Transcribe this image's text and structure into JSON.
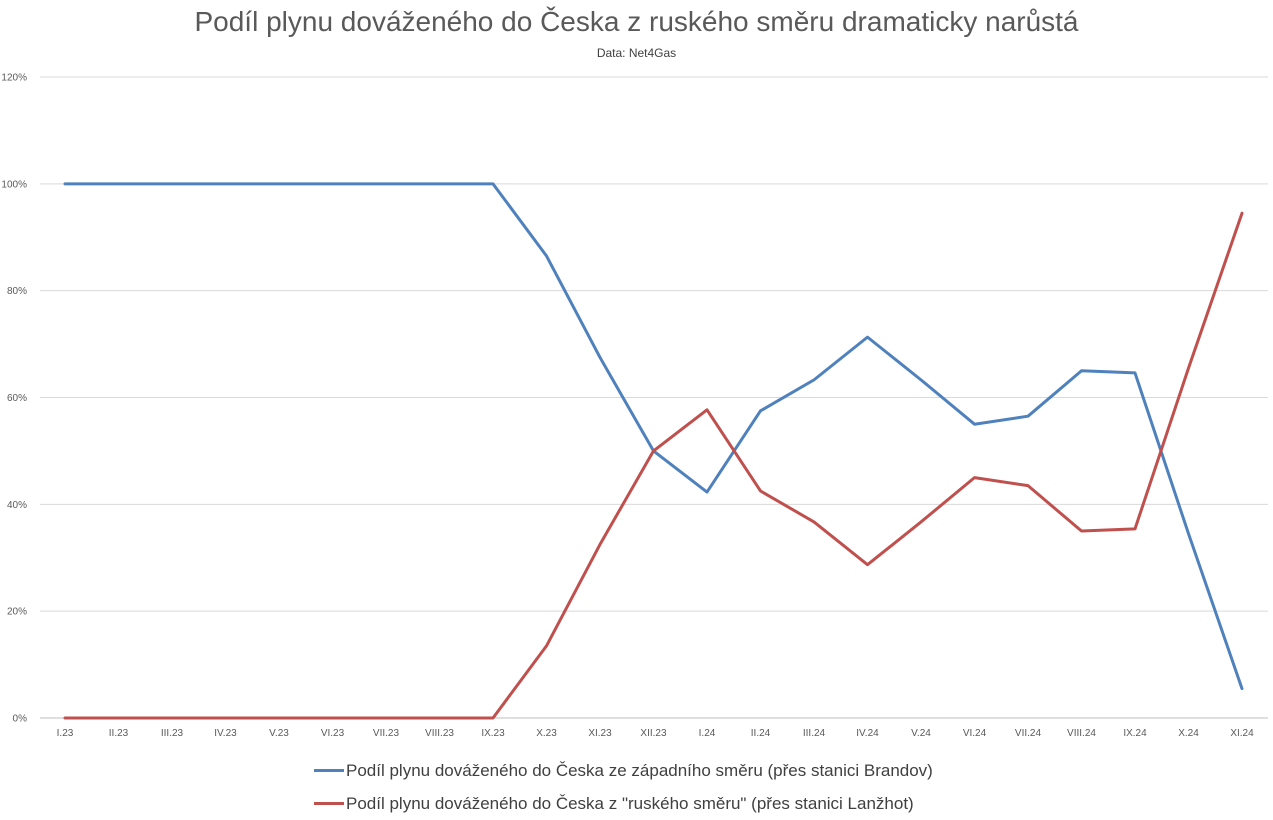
{
  "chart_data": {
    "type": "line",
    "title": "Podíl plynu dováženého do Česka z ruského směru dramaticky narůstá",
    "subtitle": "Data: Net4Gas",
    "categories": [
      "I.23",
      "II.23",
      "III.23",
      "IV.23",
      "V.23",
      "VI.23",
      "VII.23",
      "VIII.23",
      "IX.23",
      "X.23",
      "XI.23",
      "XII.23",
      "I.24",
      "II.24",
      "III.24",
      "IV.24",
      "V.24",
      "VI.24",
      "VII.24",
      "VIII.24",
      "IX.24",
      "X.24",
      "XI.24"
    ],
    "y_ticks": [
      "0%",
      "20%",
      "40%",
      "60%",
      "80%",
      "100%",
      "120%"
    ],
    "ylim": [
      0,
      120
    ],
    "grid": true,
    "legend_position": "bottom",
    "series": [
      {
        "name": "Podíl plynu dováženého do Česka ze západního směru (přes stanici Brandov)",
        "color": "#4f81bd",
        "values": [
          100,
          100,
          100,
          100,
          100,
          100,
          100,
          100,
          100,
          86.5,
          67.5,
          50,
          42.3,
          57.5,
          63.3,
          71.3,
          63.3,
          55,
          56.5,
          65,
          64.6,
          34.5,
          5.5
        ]
      },
      {
        "name": "Podíl plynu dováženého do Česka z \"ruského směru\" (přes stanici Lanžhot)",
        "color": "#c0504d",
        "values": [
          0,
          0,
          0,
          0,
          0,
          0,
          0,
          0,
          0,
          13.5,
          32.5,
          50,
          57.7,
          42.5,
          36.7,
          28.7,
          36.7,
          45,
          43.5,
          35,
          35.4,
          65.5,
          94.5
        ]
      }
    ]
  }
}
